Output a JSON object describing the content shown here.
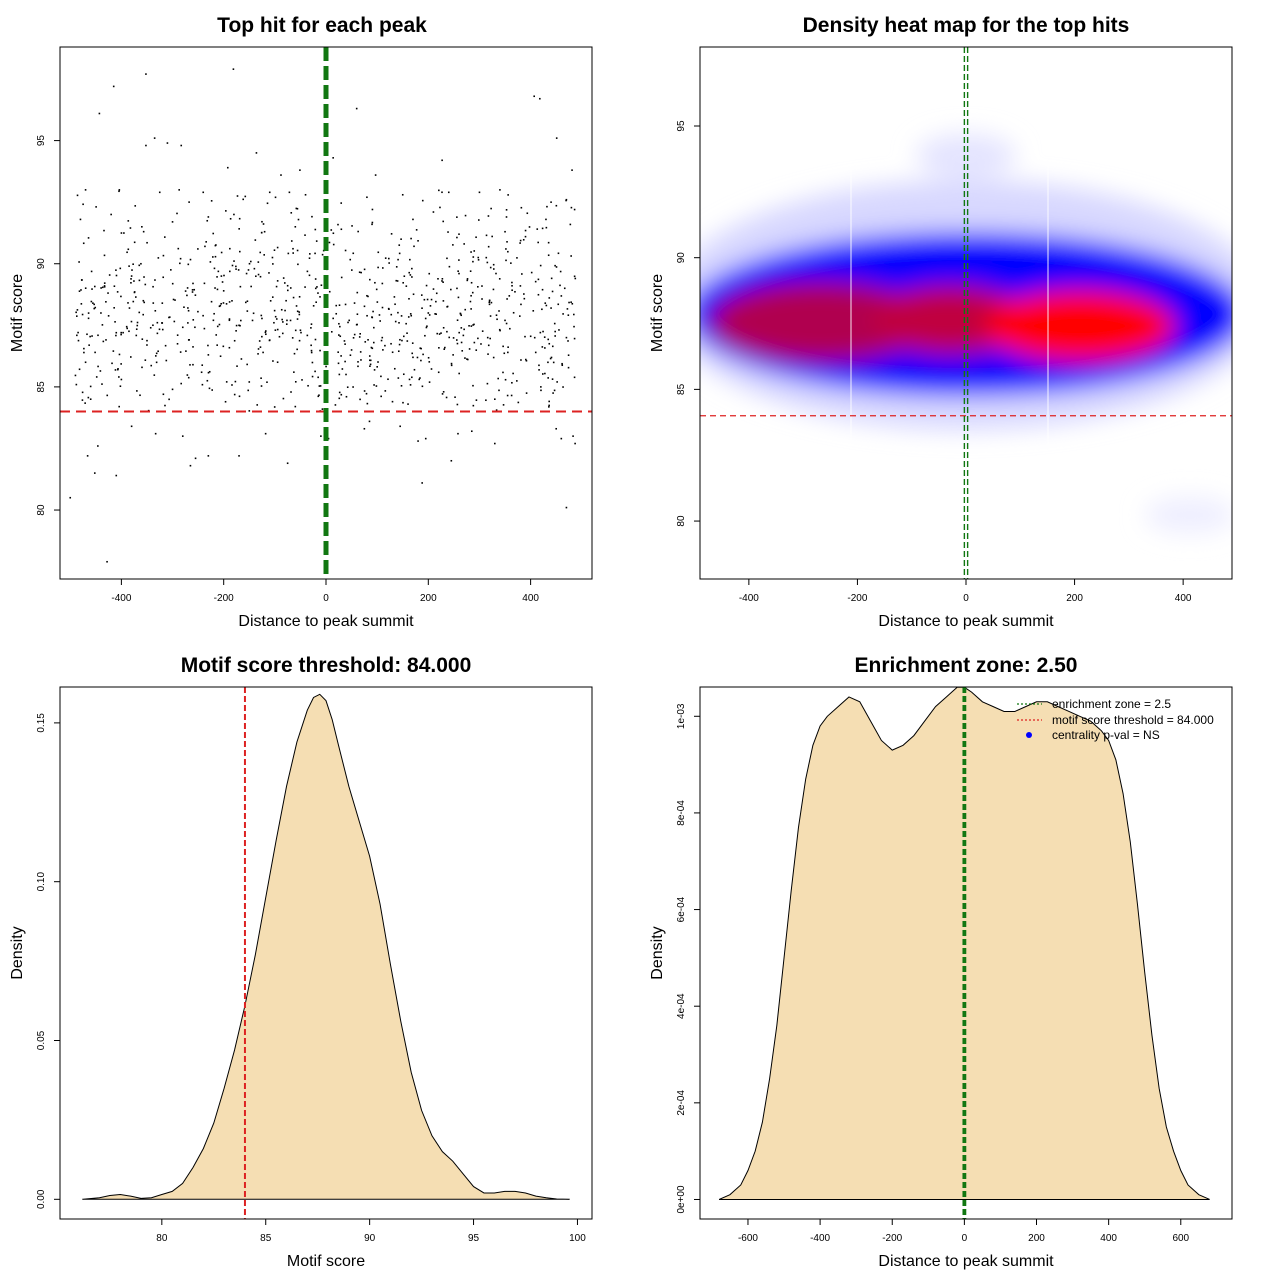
{
  "chart_data": [
    {
      "id": "p1",
      "type": "scatter",
      "title": "Top hit for each peak",
      "xlabel": "Distance to peak summit",
      "ylabel": "Motif score",
      "xlim": [
        -520,
        520
      ],
      "ylim": [
        77.2,
        98.8
      ],
      "xticks": [
        -400,
        -200,
        0,
        200,
        400
      ],
      "yticks": [
        80,
        85,
        90,
        95
      ],
      "point_count": 1000,
      "x_range": [
        -490,
        490
      ],
      "y_center": 87.9,
      "y_sd": 2.3,
      "points_sampled": [
        [
          -415,
          97.2
        ],
        [
          -352,
          97.7
        ],
        [
          -181,
          97.9
        ],
        [
          -443,
          96.1
        ],
        [
          407,
          96.8
        ],
        [
          418,
          96.7
        ],
        [
          60,
          96.3
        ],
        [
          -335,
          95.1
        ],
        [
          -310,
          94.9
        ],
        [
          -283,
          94.8
        ],
        [
          -352,
          94.8
        ],
        [
          451,
          95.1
        ],
        [
          14,
          94.3
        ],
        [
          2,
          94.1
        ],
        [
          -136,
          94.5
        ],
        [
          -88,
          93.6
        ],
        [
          -51,
          93.8
        ],
        [
          97,
          93.6
        ],
        [
          227,
          94.2
        ],
        [
          481,
          93.8
        ],
        [
          -192,
          93.9
        ],
        [
          -470,
          93.0
        ],
        [
          -404,
          93.0
        ],
        [
          -325,
          92.9
        ],
        [
          -287,
          93.0
        ],
        [
          -240,
          92.9
        ],
        [
          -110,
          92.9
        ],
        [
          -40,
          92.8
        ],
        [
          80,
          92.7
        ],
        [
          150,
          92.8
        ],
        [
          240,
          92.9
        ],
        [
          300,
          92.9
        ],
        [
          340,
          93.0
        ],
        [
          440,
          92.5
        ],
        [
          470,
          92.6
        ],
        [
          -480,
          91.8
        ],
        [
          -420,
          92.0
        ],
        [
          -360,
          91.5
        ],
        [
          -300,
          91.7
        ],
        [
          -230,
          91.9
        ],
        [
          -180,
          92.0
        ],
        [
          -120,
          91.3
        ],
        [
          -60,
          91.5
        ],
        [
          30,
          91.4
        ],
        [
          90,
          91.6
        ],
        [
          170,
          91.8
        ],
        [
          210,
          92.1
        ],
        [
          260,
          91.2
        ],
        [
          350,
          91.3
        ],
        [
          390,
          91.1
        ],
        [
          430,
          91.8
        ],
        [
          486,
          92.2
        ],
        [
          -500,
          80.5
        ],
        [
          -466,
          82.2
        ],
        [
          -452,
          81.5
        ],
        [
          -428,
          77.9
        ],
        [
          -410,
          81.4
        ],
        [
          -446,
          82.6
        ],
        [
          -380,
          83.4
        ],
        [
          -333,
          83.1
        ],
        [
          -280,
          83.0
        ],
        [
          -265,
          81.8
        ],
        [
          -255,
          82.1
        ],
        [
          -230,
          82.2
        ],
        [
          -170,
          82.2
        ],
        [
          -118,
          83.1
        ],
        [
          -75,
          81.9
        ],
        [
          -10,
          83.0
        ],
        [
          5,
          82.9
        ],
        [
          75,
          83.3
        ],
        [
          85,
          83.6
        ],
        [
          145,
          83.4
        ],
        [
          180,
          82.8
        ],
        [
          195,
          82.9
        ],
        [
          188,
          81.1
        ],
        [
          245,
          82.0
        ],
        [
          258,
          83.1
        ],
        [
          285,
          83.2
        ],
        [
          330,
          82.7
        ],
        [
          450,
          83.3
        ],
        [
          460,
          82.9
        ],
        [
          470,
          80.1
        ],
        [
          483,
          83.0
        ],
        [
          487,
          82.7
        ],
        [
          -470,
          86.0
        ],
        [
          -440,
          88.0
        ],
        [
          -410,
          87.2
        ],
        [
          -380,
          89.5
        ],
        [
          -350,
          86.7
        ],
        [
          -320,
          88.4
        ],
        [
          -290,
          87.1
        ],
        [
          -260,
          89.2
        ],
        [
          -230,
          86.3
        ],
        [
          -200,
          88.9
        ],
        [
          -170,
          87.5
        ],
        [
          -140,
          89.8
        ],
        [
          -110,
          86.9
        ],
        [
          -80,
          88.1
        ],
        [
          -50,
          87.3
        ],
        [
          -20,
          89.0
        ],
        [
          20,
          88.3
        ],
        [
          50,
          86.5
        ],
        [
          80,
          88.7
        ],
        [
          110,
          87.0
        ],
        [
          140,
          89.3
        ],
        [
          170,
          86.2
        ],
        [
          200,
          88.0
        ],
        [
          230,
          87.4
        ],
        [
          260,
          89.6
        ],
        [
          290,
          86.8
        ],
        [
          320,
          88.5
        ],
        [
          350,
          87.7
        ],
        [
          380,
          89.1
        ],
        [
          410,
          86.4
        ],
        [
          440,
          88.2
        ],
        [
          470,
          87.0
        ],
        [
          -460,
          84.5
        ],
        [
          -400,
          85.3
        ],
        [
          -300,
          84.9
        ],
        [
          -150,
          85.2
        ],
        [
          -60,
          84.2
        ],
        [
          40,
          84.6
        ],
        [
          130,
          84.4
        ],
        [
          230,
          84.8
        ],
        [
          330,
          84.5
        ],
        [
          420,
          85.0
        ]
      ],
      "hlines": [
        {
          "y": 84.0,
          "color": "#dd2222",
          "style": "dashed"
        }
      ],
      "vlines": [
        {
          "x": 0,
          "color": "#117711",
          "style": "dashed-thick"
        }
      ]
    },
    {
      "id": "p2",
      "type": "heatmap",
      "title": "Density heat map for the top hits",
      "xlabel": "Distance to peak summit",
      "ylabel": "Motif score",
      "xlim": [
        -490,
        490
      ],
      "ylim": [
        77.8,
        98.0
      ],
      "xticks": [
        -400,
        -200,
        0,
        200,
        400
      ],
      "yticks": [
        80,
        85,
        90,
        95
      ],
      "colors": {
        "low": "#ffffff",
        "mid": "#0000ff",
        "high": "#ff0000"
      },
      "hlines": [
        {
          "y": 84.0,
          "color": "#dd2222",
          "style": "dashed"
        }
      ],
      "vlines": [
        {
          "x": -3,
          "color": "#117711",
          "style": "dashed"
        },
        {
          "x": 3,
          "color": "#117711",
          "style": "dashed"
        }
      ]
    },
    {
      "id": "p3",
      "type": "area",
      "title": "Motif score threshold: 84.000",
      "xlabel": "Motif score",
      "ylabel": "Density",
      "xlim": [
        75.1,
        100.7
      ],
      "ylim": [
        -0.0062,
        0.1613
      ],
      "xticks": [
        80,
        85,
        90,
        95,
        100
      ],
      "yticks": [
        0.0,
        0.05,
        0.1,
        0.15
      ],
      "ytick_labels": [
        "0.00",
        "0.05",
        "0.10",
        "0.15"
      ],
      "fill": "#f5deb3",
      "x": [
        76.2,
        77.0,
        77.5,
        78.0,
        78.5,
        79.0,
        79.5,
        80.0,
        80.5,
        81.0,
        81.5,
        82.0,
        82.5,
        83.0,
        83.5,
        84.0,
        84.5,
        85.0,
        85.5,
        86.0,
        86.5,
        87.0,
        87.3,
        87.6,
        87.9,
        88.2,
        88.5,
        89.0,
        89.5,
        90.0,
        90.5,
        91.0,
        91.5,
        92.0,
        92.5,
        93.0,
        93.5,
        94.0,
        94.5,
        95.0,
        95.5,
        96.0,
        96.5,
        97.0,
        97.5,
        98.0,
        98.5,
        99.0,
        99.6
      ],
      "y": [
        0.0,
        0.0005,
        0.0012,
        0.0015,
        0.001,
        0.0003,
        0.0005,
        0.0015,
        0.0025,
        0.005,
        0.01,
        0.016,
        0.024,
        0.035,
        0.047,
        0.061,
        0.077,
        0.095,
        0.113,
        0.13,
        0.144,
        0.154,
        0.158,
        0.159,
        0.157,
        0.151,
        0.143,
        0.13,
        0.119,
        0.108,
        0.093,
        0.074,
        0.056,
        0.04,
        0.028,
        0.02,
        0.015,
        0.012,
        0.008,
        0.004,
        0.002,
        0.002,
        0.0025,
        0.0025,
        0.002,
        0.001,
        0.0005,
        0.0001,
        0.0
      ],
      "vlines": [
        {
          "x": 84.0,
          "color": "#dd2222",
          "style": "dashed"
        }
      ]
    },
    {
      "id": "p4",
      "type": "area",
      "title": "Enrichment zone: 2.50",
      "xlabel": "Distance to peak summit",
      "ylabel": "Density",
      "xlim": [
        -733,
        742
      ],
      "ylim": [
        -4.04e-05,
        0.0010606
      ],
      "xticks": [
        -600,
        -400,
        -200,
        0,
        200,
        400,
        600
      ],
      "yticks": [
        0,
        0.0002,
        0.0004,
        0.0006,
        0.0008,
        0.001
      ],
      "ytick_labels": [
        "0e+00",
        "2e-04",
        "4e-04",
        "6e-04",
        "8e-04",
        "1e-03"
      ],
      "fill": "#f5deb3",
      "x": [
        -680,
        -650,
        -620,
        -600,
        -580,
        -560,
        -540,
        -520,
        -500,
        -480,
        -460,
        -440,
        -420,
        -400,
        -380,
        -350,
        -320,
        -290,
        -260,
        -230,
        -200,
        -170,
        -140,
        -110,
        -80,
        -50,
        -20,
        0,
        20,
        50,
        80,
        110,
        140,
        170,
        200,
        230,
        260,
        290,
        320,
        350,
        380,
        400,
        420,
        440,
        460,
        480,
        500,
        520,
        540,
        560,
        580,
        600,
        620,
        650,
        680
      ],
      "y": [
        0.0,
        1e-05,
        3e-05,
        6e-05,
        0.0001,
        0.00016,
        0.00025,
        0.00036,
        0.0005,
        0.00064,
        0.00077,
        0.00087,
        0.00094,
        0.00098,
        0.001,
        0.00102,
        0.00104,
        0.00103,
        0.00099,
        0.00095,
        0.00093,
        0.00094,
        0.00096,
        0.00099,
        0.00102,
        0.00104,
        0.00106,
        0.00106,
        0.00105,
        0.00103,
        0.00102,
        0.00101,
        0.00101,
        0.00102,
        0.00103,
        0.00103,
        0.00102,
        0.00101,
        0.001,
        0.00099,
        0.00097,
        0.00095,
        0.00091,
        0.00084,
        0.00074,
        0.00061,
        0.00047,
        0.00034,
        0.00023,
        0.00015,
        0.0001,
        6e-05,
        3e-05,
        1e-05,
        0.0
      ],
      "vlines": [
        {
          "x": -2.5,
          "color": "#117711",
          "style": "dashed"
        },
        {
          "x": 2.5,
          "color": "#117711",
          "style": "dashed"
        }
      ],
      "legend": {
        "position": "top-right",
        "entries": [
          {
            "label": "enrichment zone = 2.5",
            "color": "#117711",
            "kind": "dotted-line"
          },
          {
            "label": "motif score threshold = 84.000",
            "color": "#dd2222",
            "kind": "dotted-line"
          },
          {
            "label": "centrality p-val = NS",
            "color": "#0000ff",
            "kind": "point"
          }
        ]
      }
    }
  ]
}
